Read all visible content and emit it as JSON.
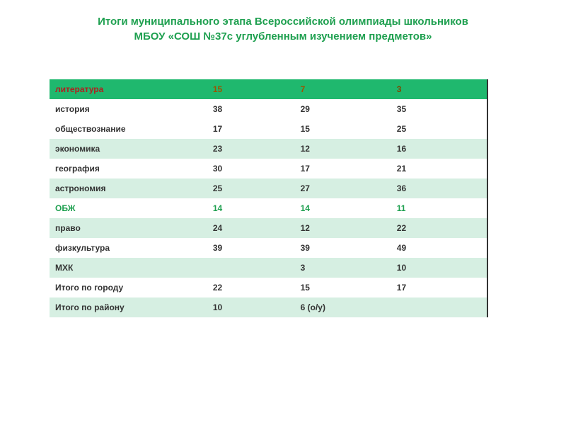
{
  "title_line1": "Итоги муниципального этапа Всероссийской олимпиады школьников",
  "title_line2": "МБОУ «СОШ №37с углубленным изучением предметов»",
  "table": {
    "header": {
      "label": "литература",
      "v1": "15",
      "v2": "7",
      "v3": "3"
    },
    "rows": [
      {
        "label": "история",
        "v1": "38",
        "v2": "29",
        "v3": "35",
        "shade": "white",
        "hl": false
      },
      {
        "label": "обществознание",
        "v1": "17",
        "v2": "15",
        "v3": "25",
        "shade": "white",
        "hl": false
      },
      {
        "label": "экономика",
        "v1": "23",
        "v2": "12",
        "v3": "16",
        "shade": "light",
        "hl": false
      },
      {
        "label": "география",
        "v1": "30",
        "v2": "17",
        "v3": "21",
        "shade": "white",
        "hl": false
      },
      {
        "label": "астрономия",
        "v1": "25",
        "v2": "27",
        "v3": "36",
        "shade": "light",
        "hl": false
      },
      {
        "label": "ОБЖ",
        "v1": "14",
        "v2": "14",
        "v3": "11",
        "shade": "white",
        "hl": true
      },
      {
        "label": "право",
        "v1": "24",
        "v2": "12",
        "v3": "22",
        "shade": "light",
        "hl": false
      },
      {
        "label": "физкультура",
        "v1": "39",
        "v2": "39",
        "v3": "49",
        "shade": "white",
        "hl": false
      },
      {
        "label": "МХК",
        "v1": "",
        "v2": "3",
        "v3": "10",
        "shade": "light",
        "hl": false
      },
      {
        "label": "Итого по городу",
        "v1": "22",
        "v2": "15",
        "v3": "17",
        "shade": "white",
        "hl": false
      },
      {
        "label": "Итого по району",
        "v1": "10",
        "v2": "6 (о/у)",
        "v3": "",
        "shade": "light",
        "hl": false
      }
    ]
  },
  "colors": {
    "title": "#1fa050",
    "header_bg": "#1fb86e",
    "header_label": "#b02020",
    "header_val": "#9a5500",
    "row_light": "#d6efe2",
    "row_white": "#ffffff",
    "text": "#333333",
    "green_text": "#1fa050",
    "border_right": "#333333"
  }
}
